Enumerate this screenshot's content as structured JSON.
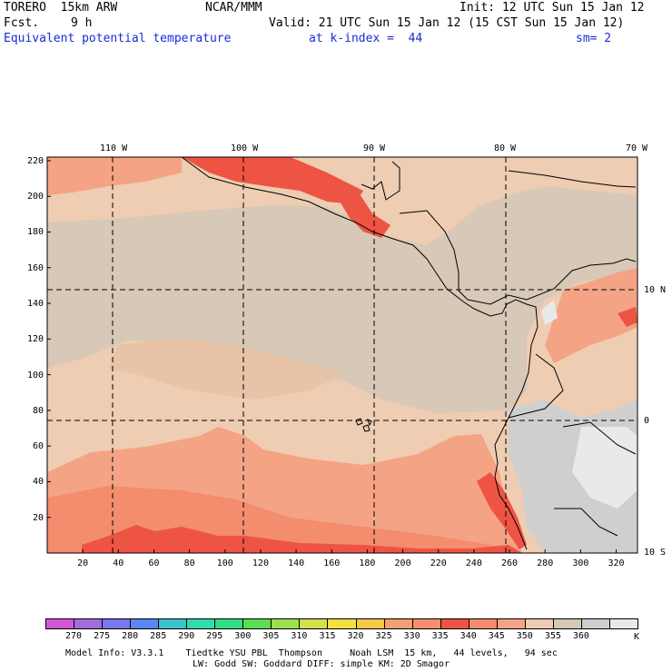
{
  "header": {
    "model_name": "TORERO  15km ARW",
    "org": "NCAR/MMM",
    "init": "Init: 12 UTC Sun 15 Jan 12",
    "fcst_label": "Fcst.",
    "fcst_value": "9 h",
    "valid": "Valid: 21 UTC Sun 15 Jan 12 (15 CST Sun 15 Jan 12)",
    "field": "Equivalent potential temperature",
    "level": "at k-index =  44",
    "smoothing": "sm= 2"
  },
  "map": {
    "lon_labels": [
      "110 W",
      "100 W",
      "90 W",
      "80 W",
      "70 W"
    ],
    "lat_labels": [
      "10 N",
      "0",
      "10 S"
    ],
    "y_ticks": [
      "20",
      "40",
      "60",
      "80",
      "100",
      "120",
      "140",
      "160",
      "180",
      "200",
      "220"
    ],
    "x_ticks": [
      "20",
      "40",
      "60",
      "80",
      "100",
      "120",
      "140",
      "160",
      "180",
      "200",
      "220",
      "240",
      "260",
      "280",
      "300",
      "320"
    ],
    "field_colors": {
      "c320": "#f0a67f",
      "c325": "#f88e6e",
      "c330": "#ee5444",
      "c335": "#f48c6e",
      "c340": "#f5a385",
      "c345": "#eecdb2",
      "c350": "#d8c8b8",
      "c355": "#cfcfcf",
      "c360": "#e9e9e9"
    }
  },
  "colorbar": {
    "labels": [
      "270",
      "275",
      "280",
      "285",
      "290",
      "295",
      "300",
      "305",
      "310",
      "315",
      "320",
      "325",
      "330",
      "335",
      "340",
      "345",
      "350",
      "355",
      "360"
    ],
    "unit": "K",
    "colors": [
      "#d258d8",
      "#a46be0",
      "#7c78ee",
      "#5c86f2",
      "#3cc2cc",
      "#32dcaa",
      "#34de84",
      "#5cdc52",
      "#9ce052",
      "#d2e24c",
      "#f4e040",
      "#f7c94a",
      "#f2a06e",
      "#f88e6e",
      "#ee5444",
      "#f48c6e",
      "#f5a385",
      "#eecdb2",
      "#d8c8b8",
      "#cfcfcf",
      "#e9e9e9"
    ]
  },
  "footer": {
    "line1": "Model Info: V3.3.1    Tiedtke YSU PBL  Thompson     Noah LSM  15 km,   44 levels,   94 sec",
    "line2": "LW: Godd SW: Goddard DIFF: simple KM: 2D Smagor"
  }
}
